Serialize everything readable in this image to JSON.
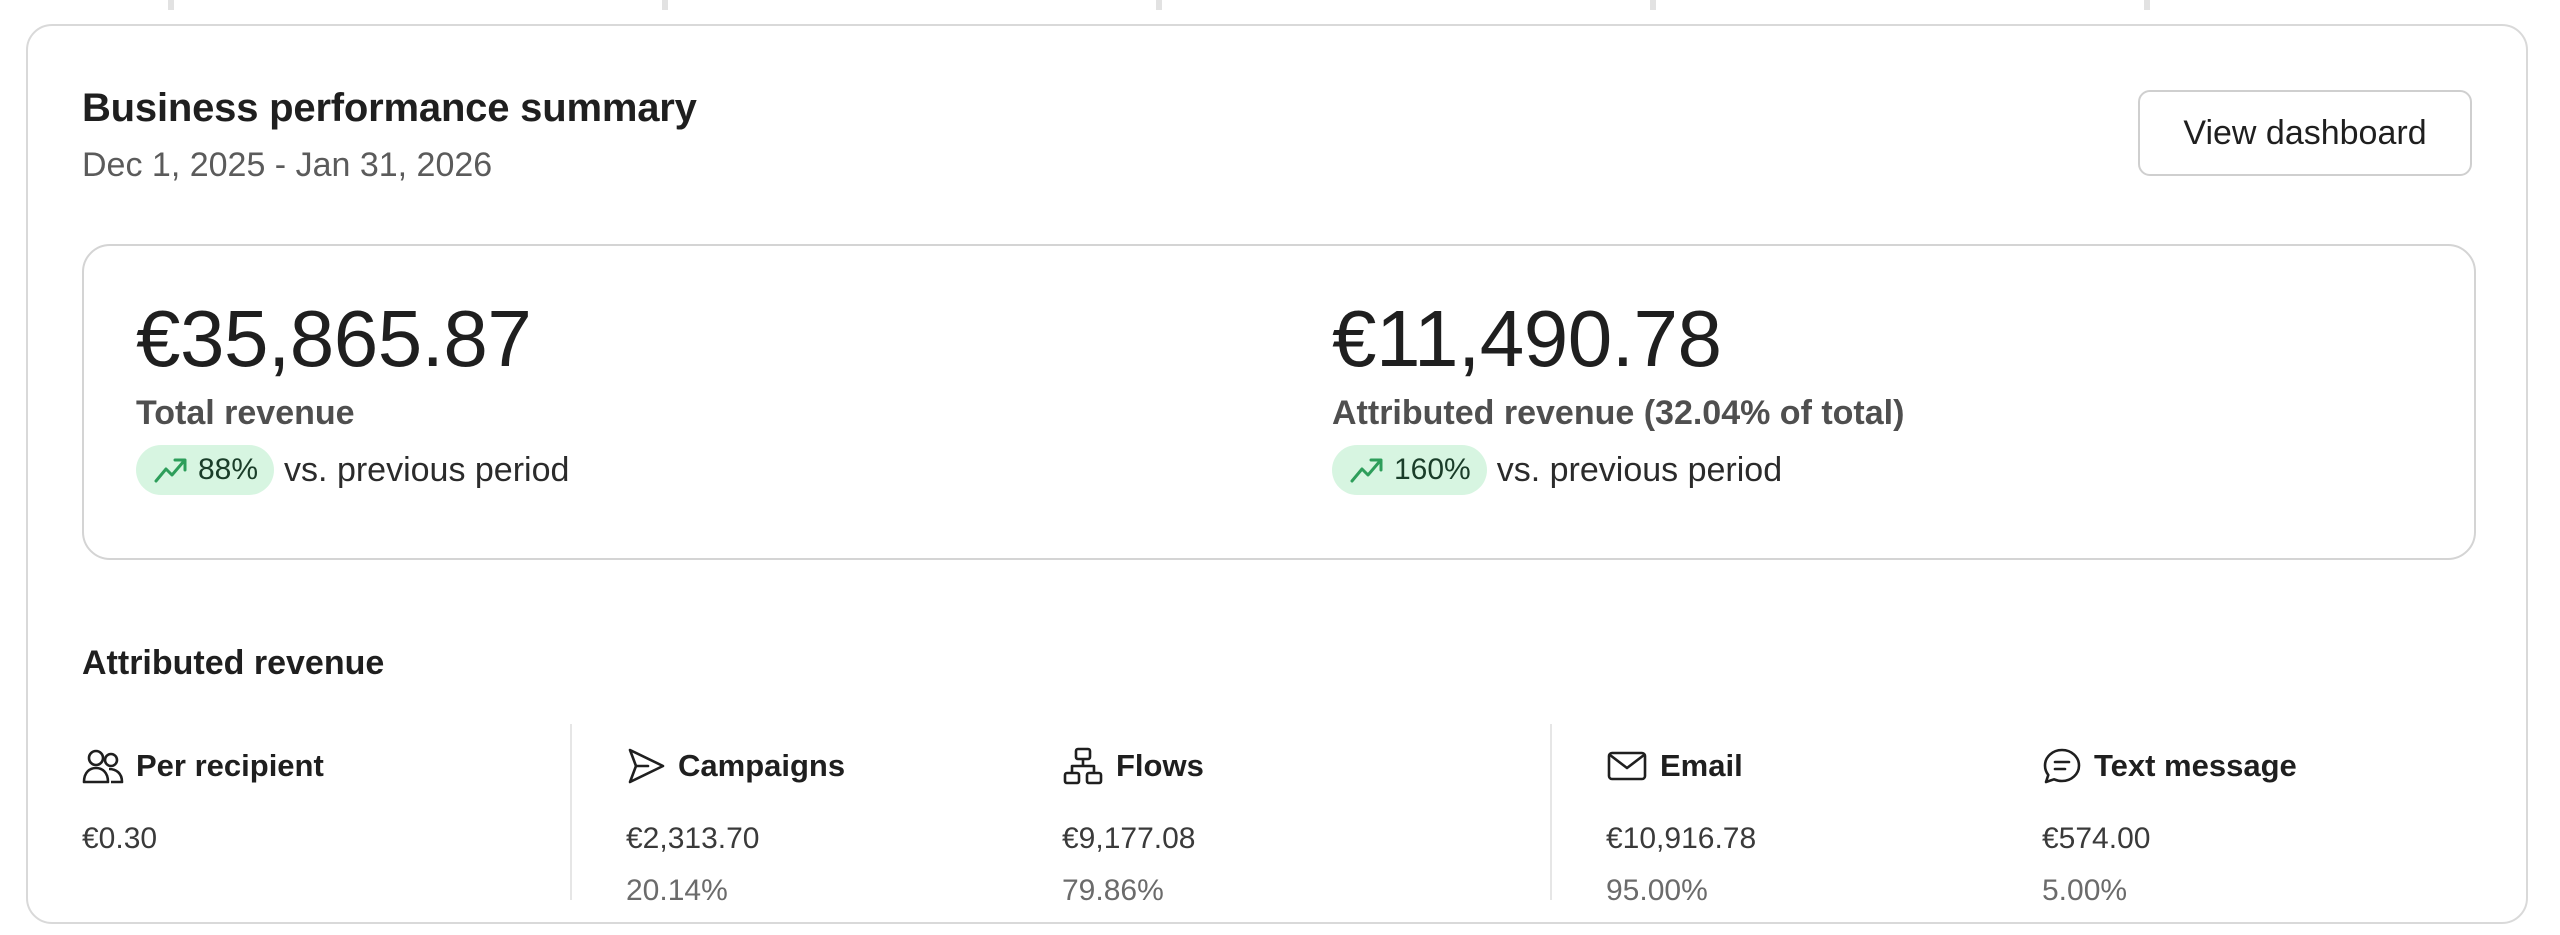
{
  "header": {
    "title": "Business performance summary",
    "date_range": "Dec 1, 2025 - Jan 31, 2026",
    "view_dashboard_label": "View dashboard"
  },
  "summary": {
    "total": {
      "value": "€35,865.87",
      "label": "Total revenue",
      "delta": "88%",
      "delta_suffix": "vs. previous period"
    },
    "attributed": {
      "value": "€11,490.78",
      "label": "Attributed revenue (32.04% of total)",
      "delta": "160%",
      "delta_suffix": "vs. previous period"
    }
  },
  "attributed_section": {
    "title": "Attributed revenue",
    "stats": [
      {
        "icon": "people-icon",
        "label": "Per recipient",
        "value": "€0.30",
        "pct": ""
      },
      {
        "icon": "send-icon",
        "label": "Campaigns",
        "value": "€2,313.70",
        "pct": "20.14%"
      },
      {
        "icon": "flow-icon",
        "label": "Flows",
        "value": "€9,177.08",
        "pct": "79.86%"
      },
      {
        "icon": "envelope-icon",
        "label": "Email",
        "value": "€10,916.78",
        "pct": "95.00%"
      },
      {
        "icon": "chat-icon",
        "label": "Text message",
        "value": "€574.00",
        "pct": "5.00%"
      }
    ]
  },
  "colors": {
    "accent_green": "#2e9e5b",
    "pill_bg": "#d7f5e1",
    "border": "#d9d9d9"
  }
}
